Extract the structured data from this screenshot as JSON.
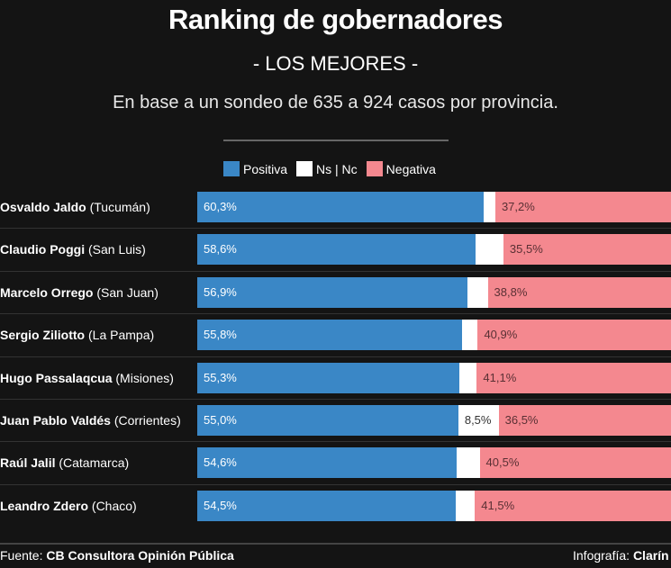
{
  "header": {
    "title": "Ranking de gobernadores",
    "subtitle": "- LOS MEJORES -",
    "description": "En base a un sondeo de 635 a 924 casos por provincia."
  },
  "chart_data": {
    "type": "bar",
    "orientation": "horizontal",
    "stacked": true,
    "xlim": [
      0,
      100
    ],
    "legend_position": "top",
    "colors": {
      "Positiva": "#3a87c6",
      "Ns | Nc": "#ffffff",
      "Negativa": "#f4888f"
    },
    "categories": [
      {
        "name": "Osvaldo Jaldo",
        "province": "(Tucumán)"
      },
      {
        "name": "Claudio Poggi",
        "province": "(San Luis)"
      },
      {
        "name": "Marcelo Orrego",
        "province": "(San Juan)"
      },
      {
        "name": "Sergio Ziliotto",
        "province": "(La Pampa)"
      },
      {
        "name": "Hugo Passalaqcua",
        "province": "(Misiones)"
      },
      {
        "name": "Juan Pablo Valdés",
        "province": "(Corrientes)"
      },
      {
        "name": "Raúl Jalil",
        "province": "(Catamarca)"
      },
      {
        "name": "Leandro Zdero",
        "province": "(Chaco)"
      }
    ],
    "series": [
      {
        "name": "Positiva",
        "values": [
          60.3,
          58.6,
          56.9,
          55.8,
          55.3,
          55.0,
          54.6,
          54.5
        ],
        "labels": [
          "60,3%",
          "58,6%",
          "56,9%",
          "55,8%",
          "55,3%",
          "55,0%",
          "54,6%",
          "54,5%"
        ]
      },
      {
        "name": "Ns | Nc",
        "values": [
          2.5,
          5.9,
          4.3,
          3.3,
          3.6,
          8.5,
          4.9,
          4.0
        ],
        "labels": [
          "",
          "",
          "",
          "",
          "",
          "8,5%",
          "",
          ""
        ]
      },
      {
        "name": "Negativa",
        "values": [
          37.2,
          35.5,
          38.8,
          40.9,
          41.1,
          36.5,
          40.5,
          41.5
        ],
        "labels": [
          "37,2%",
          "35,5%",
          "38,8%",
          "40,9%",
          "41,1%",
          "36,5%",
          "40,5%",
          "41,5%"
        ]
      }
    ]
  },
  "footer": {
    "source_label": "Fuente:",
    "source": "CB Consultora Opinión Pública",
    "credit_label": "Infografía:",
    "credit": "Clarín"
  }
}
